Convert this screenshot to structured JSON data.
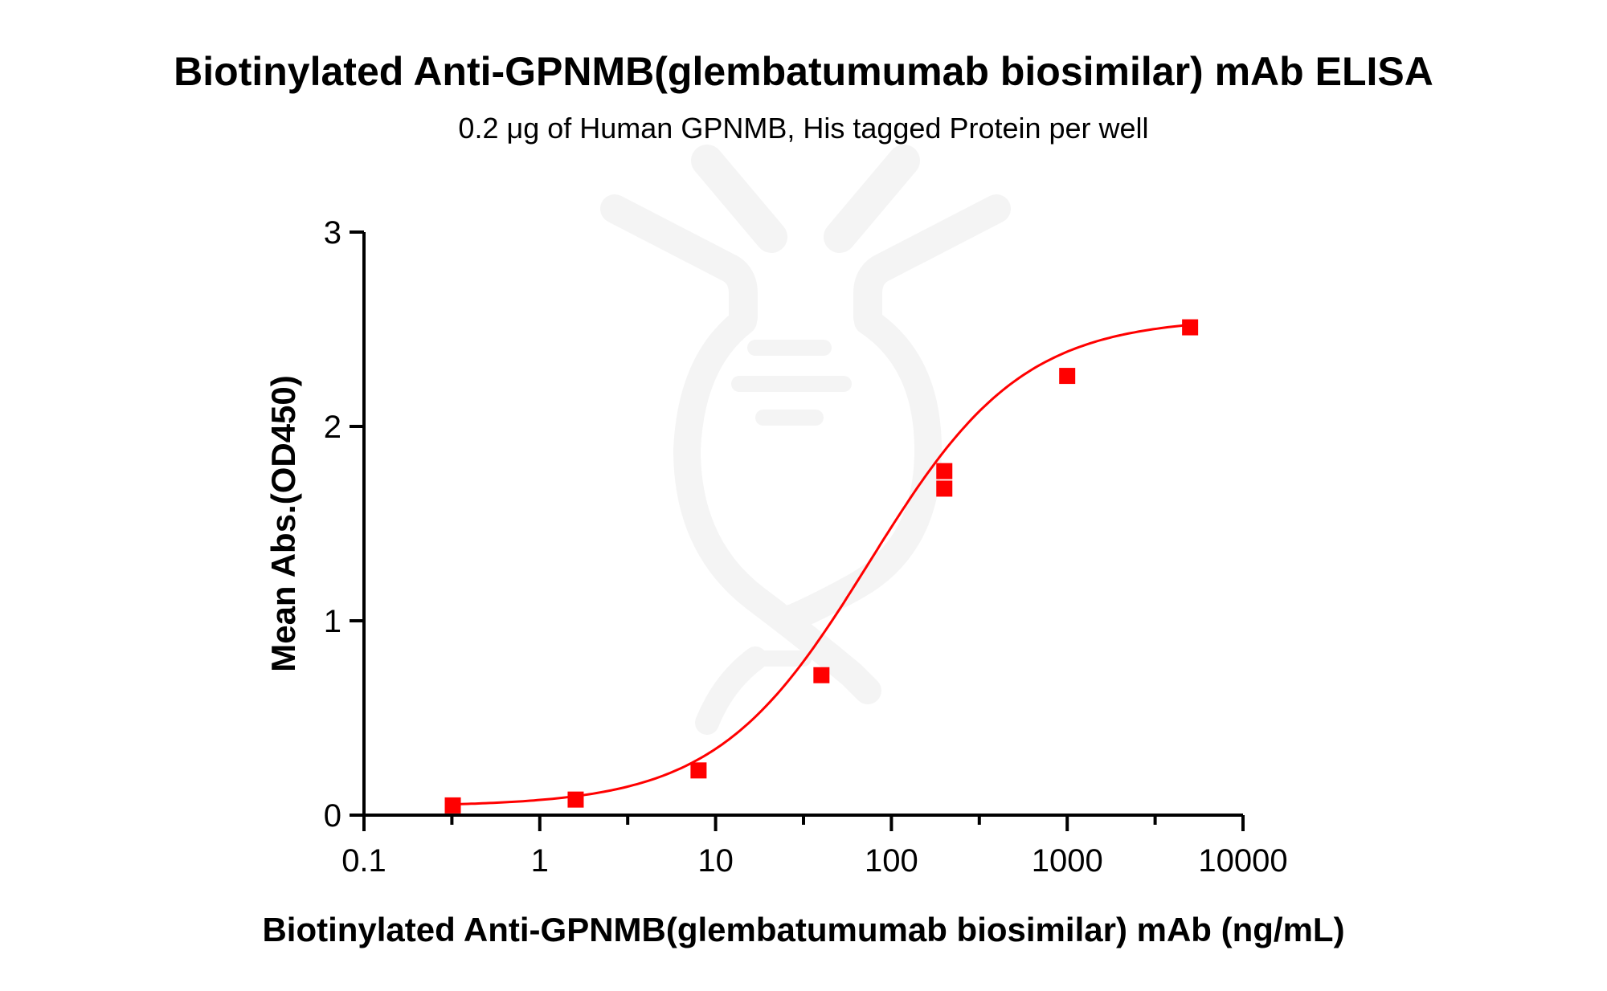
{
  "chart_data": {
    "type": "scatter",
    "title": "Biotinylated Anti-GPNMB(glembatumumab biosimilar) mAb ELISA",
    "subtitle": "0.2 μg of Human GPNMB, His tagged Protein per well",
    "xlabel": "Biotinylated Anti-GPNMB(glembatumumab biosimilar) mAb (ng/mL)",
    "ylabel": "Mean Abs.(OD450)",
    "xscale": "log",
    "xlim": [
      0.1,
      10000
    ],
    "ylim": [
      0,
      3
    ],
    "xticks": [
      "0.1",
      "1",
      "10",
      "100",
      "1000",
      "10000"
    ],
    "xtick_values": [
      0.1,
      1,
      10,
      100,
      1000,
      10000
    ],
    "yticks": [
      "0",
      "1",
      "2",
      "3"
    ],
    "ytick_values": [
      0,
      1,
      2,
      3
    ],
    "grid": false,
    "legend": "none",
    "series": [
      {
        "name": "Mean Abs.(OD450)",
        "color": "#ff0000",
        "marker": "square",
        "x": [
          0.32,
          1.6,
          8,
          40,
          200,
          200,
          1000,
          5000
        ],
        "y": [
          0.05,
          0.08,
          0.23,
          0.72,
          1.68,
          1.77,
          2.26,
          2.51
        ],
        "fit": "four-parameter logistic"
      }
    ]
  },
  "colors": {
    "series": "#ff0000",
    "axis": "#000000",
    "watermark": "#f4f4f4"
  }
}
